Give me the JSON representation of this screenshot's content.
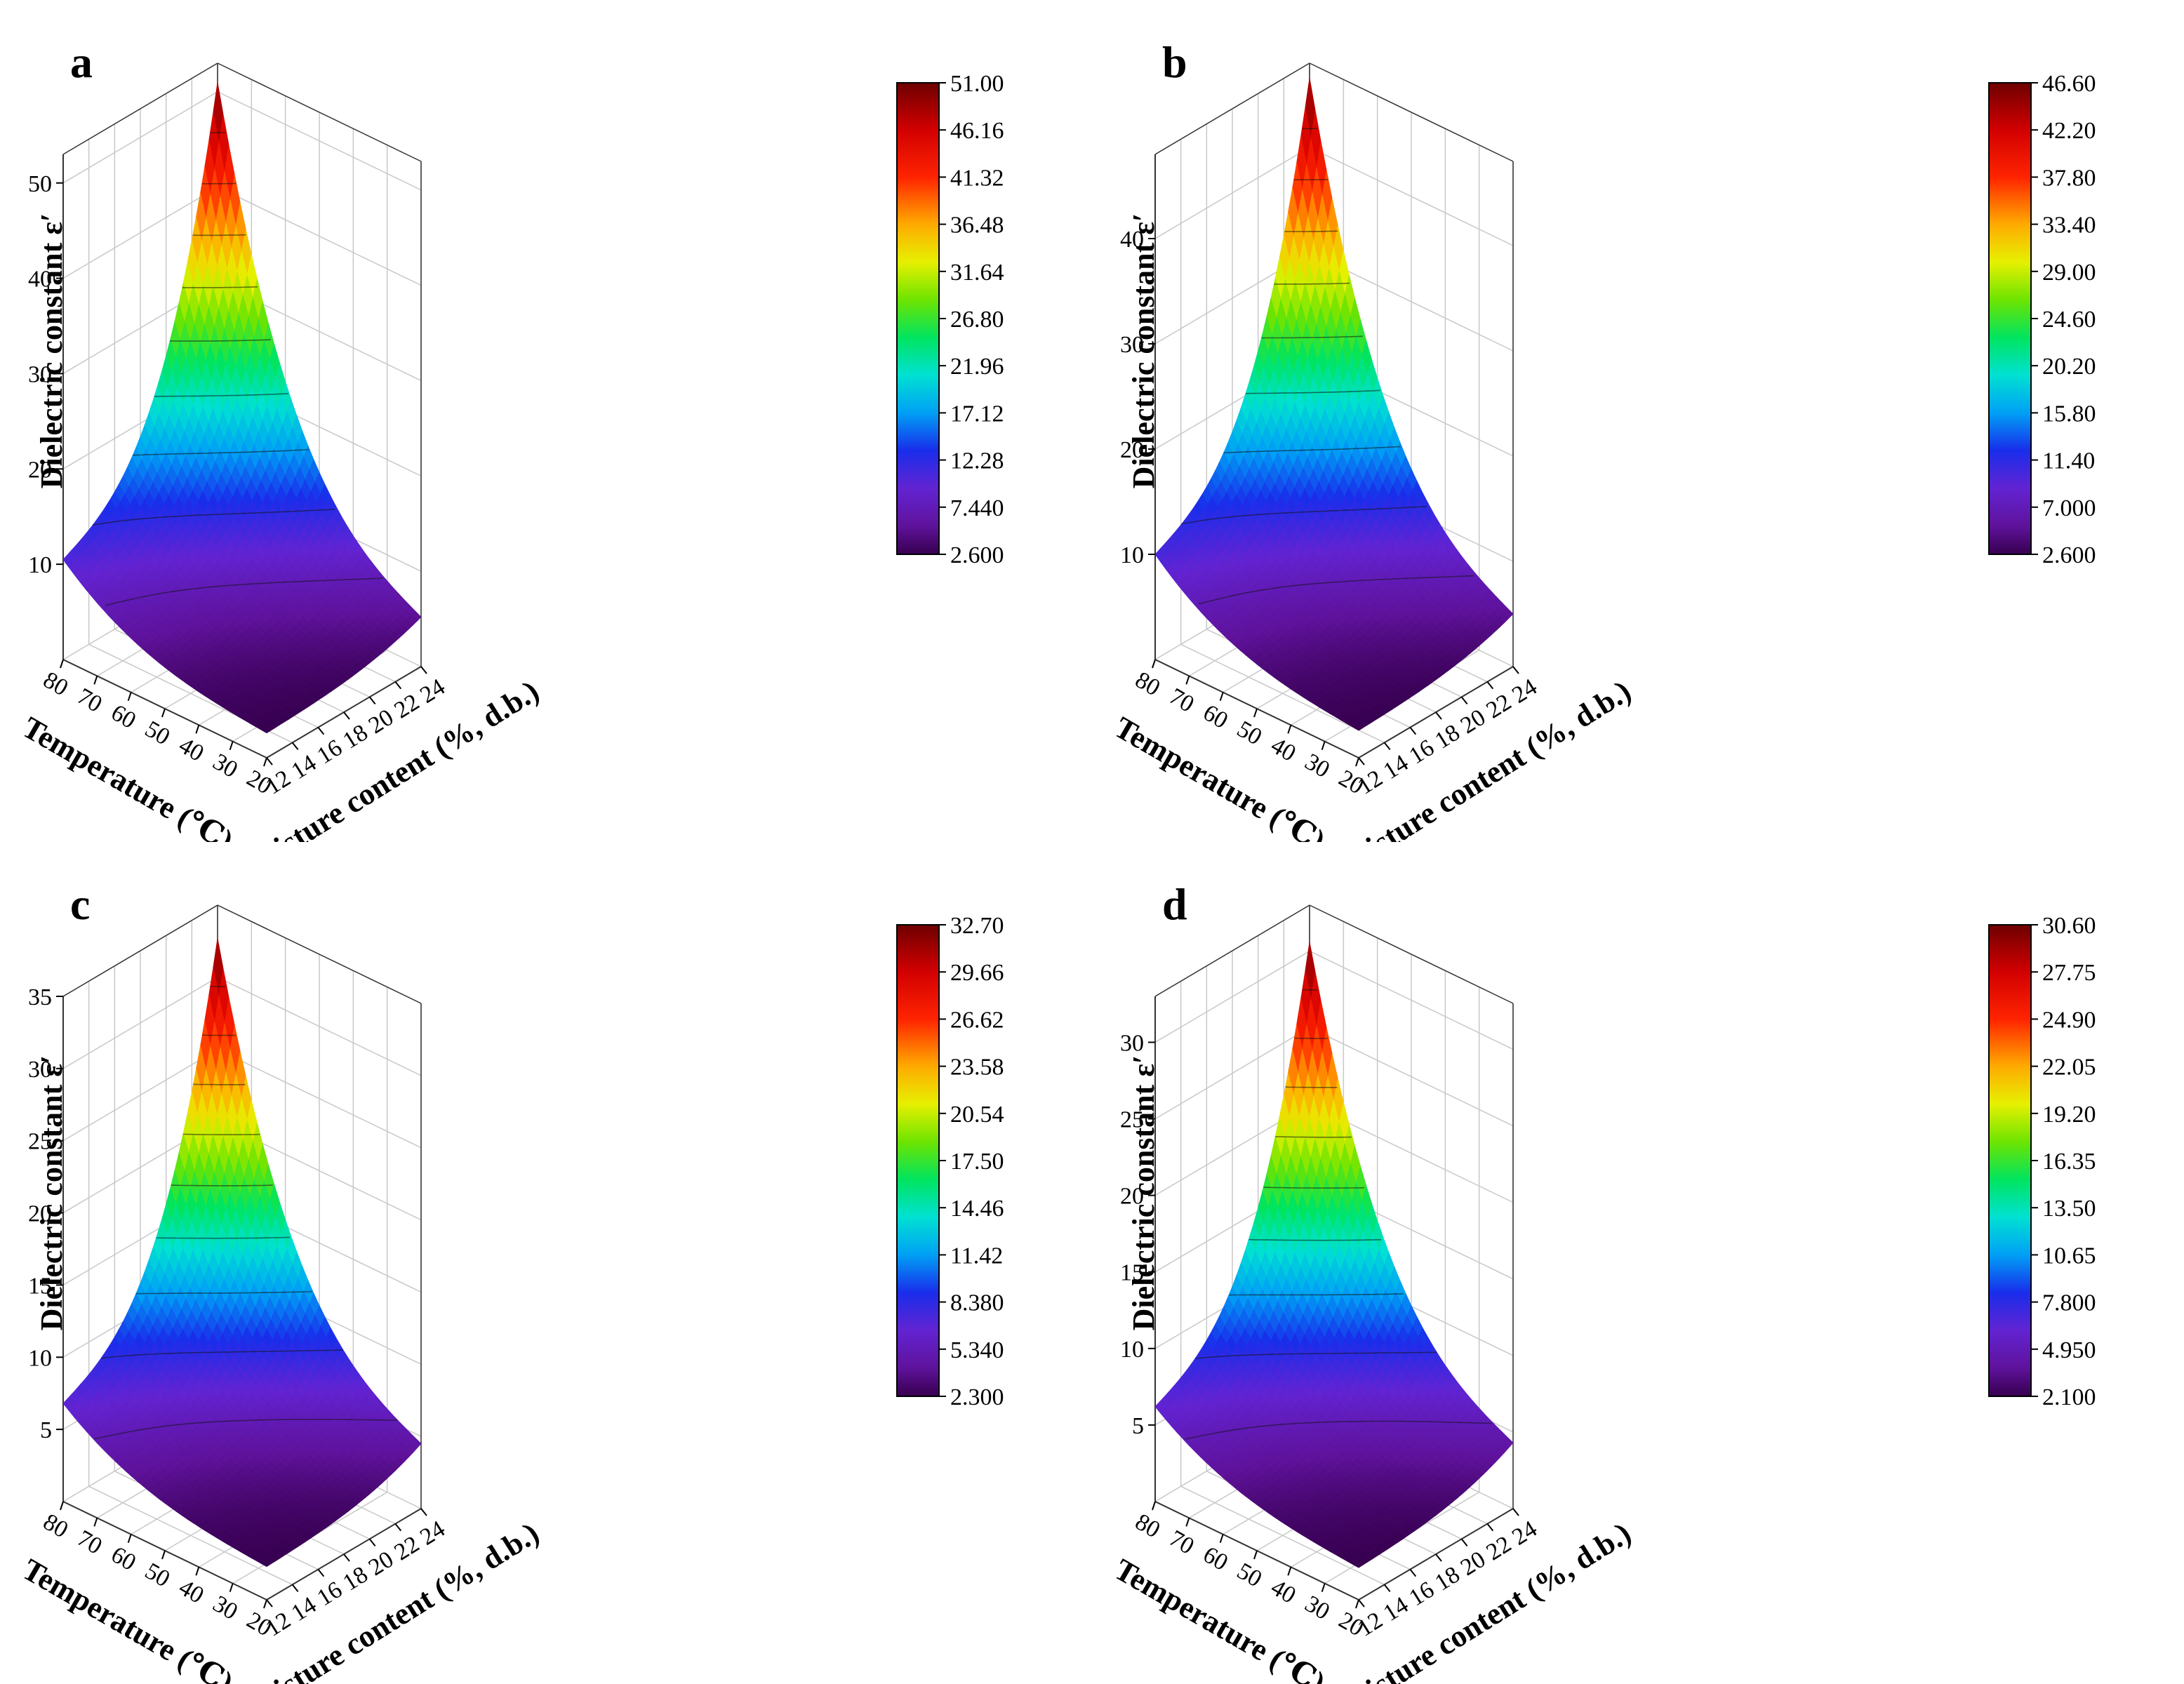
{
  "chart_data": [
    {
      "type": "surface3d",
      "panel_label": "a",
      "title": "",
      "zlabel": "Dielectric constant ε′",
      "xlabel": "Temperature (℃)",
      "ylabel": "Moisture content (%, d.b.)",
      "x_ticks": [
        "80",
        "70",
        "60",
        "50",
        "40",
        "30",
        "20"
      ],
      "y_ticks": [
        "12",
        "14",
        "16",
        "18",
        "20",
        "22",
        "24"
      ],
      "z_ticks": [
        "10",
        "20",
        "30",
        "40",
        "50"
      ],
      "xlim": [
        20,
        80
      ],
      "ylim": [
        12,
        24
      ],
      "zlim": [
        0,
        53
      ],
      "colorbar": {
        "min": 2.6,
        "max": 51.0,
        "labels": [
          "51.00",
          "46.16",
          "41.32",
          "36.48",
          "31.64",
          "26.80",
          "21.96",
          "17.12",
          "12.28",
          "7.440",
          "2.600"
        ]
      },
      "surface": {
        "z_min_corner_T20_M12": 2.6,
        "z_corner_T80_M12": 10.5,
        "z_corner_T20_M24": 5.2,
        "z_max_corner_T80_M24": 51.0
      }
    },
    {
      "type": "surface3d",
      "panel_label": "b",
      "title": "",
      "zlabel": "Dielectric constant ε′",
      "xlabel": "Temperature (℃)",
      "ylabel": "Moisture content (%, d.b.)",
      "x_ticks": [
        "80",
        "70",
        "60",
        "50",
        "40",
        "30",
        "20"
      ],
      "y_ticks": [
        "12",
        "14",
        "16",
        "18",
        "20",
        "22",
        "24"
      ],
      "z_ticks": [
        "10",
        "20",
        "30",
        "40"
      ],
      "xlim": [
        20,
        80
      ],
      "ylim": [
        12,
        24
      ],
      "zlim": [
        0,
        48
      ],
      "colorbar": {
        "min": 2.6,
        "max": 46.6,
        "labels": [
          "46.60",
          "42.20",
          "37.80",
          "33.40",
          "29.00",
          "24.60",
          "20.20",
          "15.80",
          "11.40",
          "7.000",
          "2.600"
        ]
      },
      "surface": {
        "z_min_corner_T20_M12": 2.6,
        "z_corner_T80_M12": 10.0,
        "z_corner_T20_M24": 5.0,
        "z_max_corner_T80_M24": 46.6
      }
    },
    {
      "type": "surface3d",
      "panel_label": "c",
      "title": "",
      "zlabel": "Dielectric constant ε′",
      "xlabel": "Temperature (℃)",
      "ylabel": "Moisture content (%, d.b.)",
      "x_ticks": [
        "80",
        "70",
        "60",
        "50",
        "40",
        "30",
        "20"
      ],
      "y_ticks": [
        "12",
        "14",
        "16",
        "18",
        "20",
        "22",
        "24"
      ],
      "z_ticks": [
        "5",
        "10",
        "15",
        "20",
        "25",
        "30",
        "35"
      ],
      "xlim": [
        20,
        80
      ],
      "ylim": [
        12,
        24
      ],
      "zlim": [
        0,
        35
      ],
      "colorbar": {
        "min": 2.3,
        "max": 32.7,
        "labels": [
          "32.70",
          "29.66",
          "26.62",
          "23.58",
          "20.54",
          "17.50",
          "14.46",
          "11.42",
          "8.380",
          "5.340",
          "2.300"
        ]
      },
      "surface": {
        "z_min_corner_T20_M12": 2.3,
        "z_corner_T80_M12": 6.8,
        "z_corner_T20_M24": 4.5,
        "z_max_corner_T80_M24": 32.7
      }
    },
    {
      "type": "surface3d",
      "panel_label": "d",
      "title": "",
      "zlabel": "Dielectric constant ε′",
      "xlabel": "Temperature (℃)",
      "ylabel": "Moisture content (%, d.b.)",
      "x_ticks": [
        "80",
        "70",
        "60",
        "50",
        "40",
        "30",
        "20"
      ],
      "y_ticks": [
        "12",
        "14",
        "16",
        "18",
        "20",
        "22",
        "24"
      ],
      "z_ticks": [
        "5",
        "10",
        "15",
        "20",
        "25",
        "30"
      ],
      "xlim": [
        20,
        80
      ],
      "ylim": [
        12,
        24
      ],
      "zlim": [
        0,
        33
      ],
      "colorbar": {
        "min": 2.1,
        "max": 30.6,
        "labels": [
          "30.60",
          "27.75",
          "24.90",
          "22.05",
          "19.20",
          "16.35",
          "13.50",
          "10.65",
          "7.800",
          "4.950",
          "2.100"
        ]
      },
      "surface": {
        "z_min_corner_T20_M12": 2.1,
        "z_corner_T80_M12": 6.2,
        "z_corner_T20_M24": 4.3,
        "z_max_corner_T80_M24": 30.6
      }
    }
  ]
}
